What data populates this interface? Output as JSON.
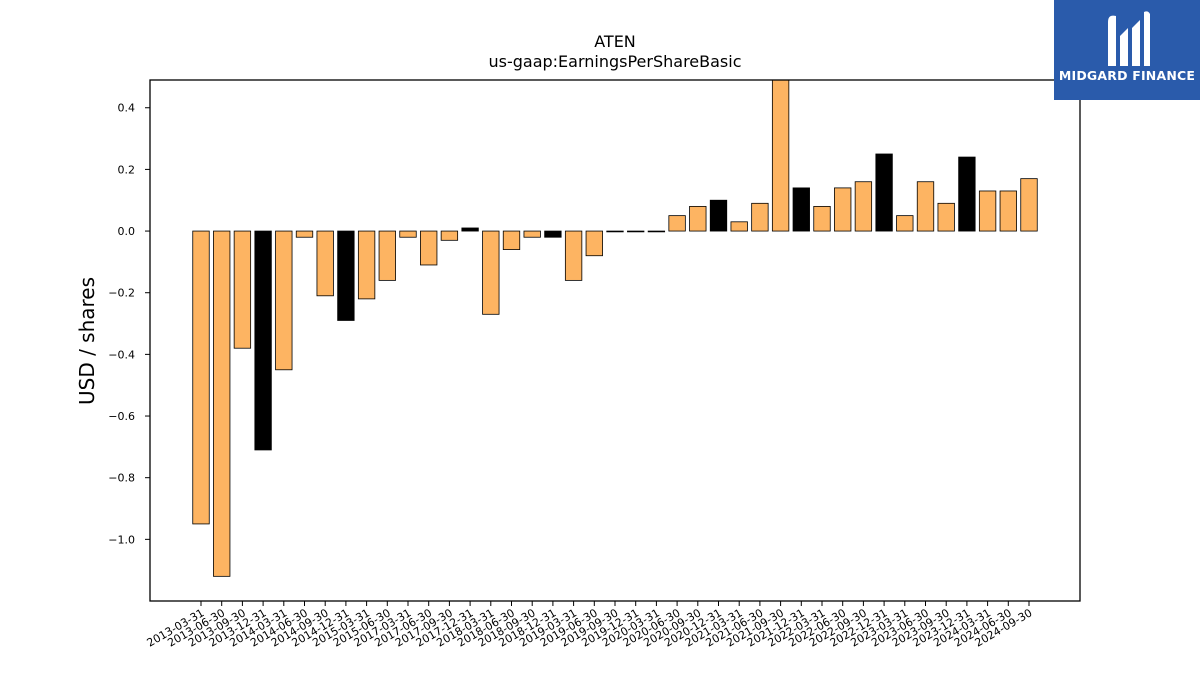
{
  "chart_data": {
    "type": "bar",
    "title": "ATEN",
    "subtitle": "us-gaap:EarningsPerShareBasic",
    "xlabel": "",
    "ylabel": "USD / shares",
    "ylim": [
      -1.2,
      0.49
    ],
    "yticks": [
      0.4,
      0.2,
      0.0,
      -0.2,
      -0.4,
      -0.6,
      -0.8,
      -1.0
    ],
    "ytick_labels": [
      "0.4",
      "0.2",
      "0.0",
      "−0.2",
      "−0.4",
      "−0.6",
      "−0.8",
      "−1.0"
    ],
    "categories": [
      "2013-03-31",
      "2013-06-30",
      "2013-09-30",
      "2013-12-31",
      "2014-03-31",
      "2014-06-30",
      "2014-09-30",
      "2014-12-31",
      "2015-03-31",
      "2015-06-30",
      "2017-03-31",
      "2017-06-30",
      "2017-09-30",
      "2017-12-31",
      "2018-03-31",
      "2018-06-30",
      "2018-09-30",
      "2018-12-31",
      "2019-03-31",
      "2019-06-30",
      "2019-09-30",
      "2019-12-31",
      "2020-03-31",
      "2020-06-30",
      "2020-09-30",
      "2020-12-31",
      "2021-03-31",
      "2021-06-30",
      "2021-09-30",
      "2021-12-31",
      "2022-03-31",
      "2022-06-30",
      "2022-09-30",
      "2022-12-31",
      "2023-03-31",
      "2023-06-30",
      "2023-09-30",
      "2023-12-31",
      "2024-03-31",
      "2024-06-30",
      "2024-09-30"
    ],
    "values": [
      -0.95,
      -1.12,
      -0.38,
      -0.71,
      -0.45,
      -0.02,
      -0.21,
      -0.29,
      -0.22,
      -0.16,
      -0.02,
      -0.11,
      -0.03,
      0.01,
      -0.27,
      -0.06,
      -0.02,
      -0.02,
      -0.16,
      -0.08,
      0.0,
      0.0,
      0.0,
      0.05,
      0.08,
      0.1,
      0.03,
      0.09,
      0.49,
      0.14,
      0.08,
      0.14,
      0.16,
      0.25,
      0.05,
      0.16,
      0.09,
      0.24,
      0.13,
      0.13,
      0.17
    ],
    "bar_colors": [
      "#fdb462",
      "#fdb462",
      "#fdb462",
      "#000000",
      "#fdb462",
      "#fdb462",
      "#fdb462",
      "#000000",
      "#fdb462",
      "#fdb462",
      "#fdb462",
      "#fdb462",
      "#fdb462",
      "#000000",
      "#fdb462",
      "#fdb462",
      "#fdb462",
      "#000000",
      "#fdb462",
      "#fdb462",
      "#fdb462",
      "#fdb462",
      "#fdb462",
      "#fdb462",
      "#fdb462",
      "#000000",
      "#fdb462",
      "#fdb462",
      "#fdb462",
      "#000000",
      "#fdb462",
      "#fdb462",
      "#fdb462",
      "#000000",
      "#fdb462",
      "#fdb462",
      "#fdb462",
      "#000000",
      "#fdb462",
      "#fdb462",
      "#fdb462"
    ],
    "grid": false,
    "legend": "none"
  },
  "logo": {
    "text": "MIDGARD FINANCE",
    "icon": "midgard-logo-icon",
    "background": "#2a5bab"
  }
}
